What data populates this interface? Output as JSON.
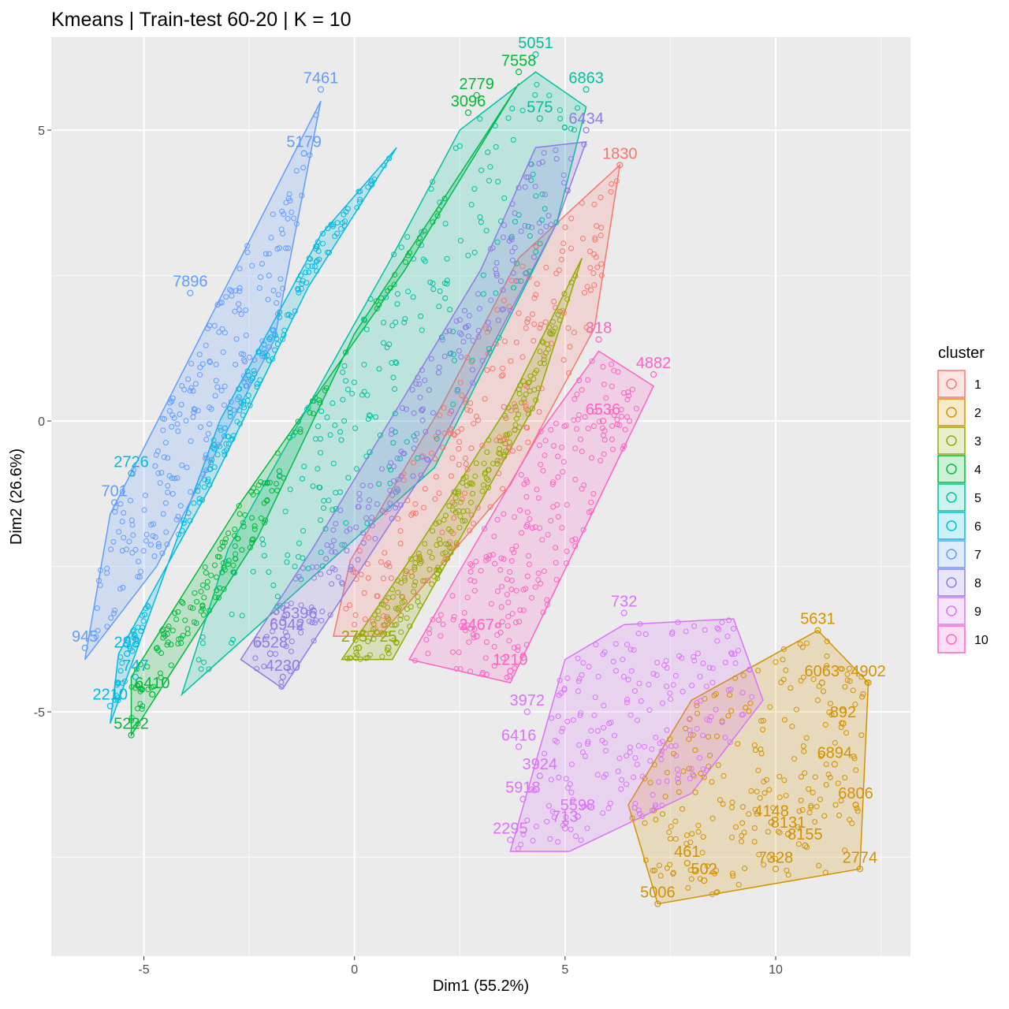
{
  "chart_data": {
    "type": "scatter",
    "title": "Kmeans | Train-test 60-20 | K = 10",
    "xlabel": "Dim1 (55.2%)",
    "ylabel": "Dim2 (26.6%)",
    "xlim": [
      -7.2,
      13.2
    ],
    "ylim": [
      -9.2,
      6.6
    ],
    "x_ticks": [
      -5,
      0,
      5,
      10
    ],
    "x_tick_labels": [
      "-5",
      "0",
      "5",
      "10"
    ],
    "y_ticks": [
      -5,
      0,
      5
    ],
    "y_tick_labels": [
      "-5",
      "0",
      "5"
    ],
    "grid": true,
    "legend": {
      "title": "cluster",
      "position": "right"
    },
    "series": [
      {
        "name": "1",
        "color": "#F8766D",
        "hull": [
          [
            6.3,
            4.4
          ],
          [
            5.7,
            1.6
          ],
          [
            3.7,
            -1.1
          ],
          [
            0.6,
            -3.7
          ],
          [
            -0.5,
            -3.7
          ],
          [
            -0.1,
            -2.4
          ],
          [
            2.1,
            0.3
          ],
          [
            3.9,
            2.8
          ]
        ],
        "labels": [
          {
            "text": "1830",
            "x": 6.3,
            "y": 4.4
          }
        ]
      },
      {
        "name": "2",
        "color": "#D39200",
        "hull": [
          [
            11.0,
            -3.6
          ],
          [
            12.2,
            -4.5
          ],
          [
            12.0,
            -7.7
          ],
          [
            7.2,
            -8.3
          ],
          [
            6.5,
            -6.6
          ],
          [
            8.0,
            -4.8
          ]
        ],
        "labels": [
          {
            "text": "5631",
            "x": 11.0,
            "y": -3.6
          },
          {
            "text": "4902",
            "x": 12.2,
            "y": -4.5
          },
          {
            "text": "6063",
            "x": 11.1,
            "y": -4.5
          },
          {
            "text": "892",
            "x": 11.6,
            "y": -5.2
          },
          {
            "text": "6894",
            "x": 11.4,
            "y": -5.9
          },
          {
            "text": "6806",
            "x": 11.9,
            "y": -6.6
          },
          {
            "text": "2774",
            "x": 12.0,
            "y": -7.7
          },
          {
            "text": "7328",
            "x": 10.0,
            "y": -7.7
          },
          {
            "text": "8155",
            "x": 10.7,
            "y": -7.3
          },
          {
            "text": "4148",
            "x": 9.9,
            "y": -6.9
          },
          {
            "text": "8131",
            "x": 10.3,
            "y": -7.1
          },
          {
            "text": "5006",
            "x": 7.2,
            "y": -8.3
          },
          {
            "text": "502",
            "x": 8.3,
            "y": -7.9
          },
          {
            "text": "461",
            "x": 7.9,
            "y": -7.6
          }
        ]
      },
      {
        "name": "3",
        "color": "#93AA00",
        "hull": [
          [
            5.4,
            2.8
          ],
          [
            4.3,
            0.3
          ],
          [
            0.9,
            -4.1
          ],
          [
            -0.3,
            -4.1
          ],
          [
            1.3,
            -2.4
          ],
          [
            3.6,
            0.2
          ]
        ],
        "labels": [
          {
            "text": "2757",
            "x": 0.1,
            "y": -3.9
          },
          {
            "text": "25",
            "x": 0.8,
            "y": -3.9
          }
        ]
      },
      {
        "name": "4",
        "color": "#00BA38",
        "hull": [
          [
            3.9,
            5.8
          ],
          [
            3.1,
            4.9
          ],
          [
            0.0,
            1.5
          ],
          [
            -2.3,
            -2.0
          ],
          [
            -5.3,
            -5.4
          ],
          [
            -5.3,
            -4.4
          ],
          [
            -2.7,
            -1.4
          ],
          [
            1.2,
            2.6
          ]
        ],
        "labels": [
          {
            "text": "7558",
            "x": 3.9,
            "y": 6.0
          },
          {
            "text": "2779",
            "x": 2.9,
            "y": 5.6
          },
          {
            "text": "3096",
            "x": 2.7,
            "y": 5.3
          },
          {
            "text": "6410",
            "x": -4.8,
            "y": -4.7
          },
          {
            "text": "5222",
            "x": -5.3,
            "y": -5.4
          }
        ]
      },
      {
        "name": "5",
        "color": "#00C19F",
        "hull": [
          [
            4.3,
            6.0
          ],
          [
            5.5,
            5.4
          ],
          [
            4.8,
            3.4
          ],
          [
            1.9,
            -0.8
          ],
          [
            -4.1,
            -4.7
          ],
          [
            -3.0,
            -2.2
          ],
          [
            0.8,
            2.7
          ],
          [
            2.5,
            5.0
          ]
        ],
        "labels": [
          {
            "text": "5051",
            "x": 4.3,
            "y": 6.3
          },
          {
            "text": "6863",
            "x": 5.5,
            "y": 5.7
          },
          {
            "text": "575",
            "x": 4.4,
            "y": 5.2
          }
        ]
      },
      {
        "name": "6",
        "color": "#00B9E3",
        "hull": [
          [
            1.0,
            4.7
          ],
          [
            -0.8,
            3.2
          ],
          [
            -3.2,
            0.0
          ],
          [
            -5.8,
            -5.2
          ],
          [
            -5.6,
            -4.0
          ],
          [
            -3.4,
            -1.1
          ],
          [
            -1.1,
            2.3
          ]
        ],
        "labels": [
          {
            "text": "2726",
            "x": -5.3,
            "y": -0.9
          },
          {
            "text": "2210",
            "x": -5.8,
            "y": -4.9
          },
          {
            "text": "298",
            "x": -5.4,
            "y": -4.0
          },
          {
            "text": "747",
            "x": -5.2,
            "y": -4.4
          }
        ]
      },
      {
        "name": "7",
        "color": "#619CFF",
        "hull": [
          [
            -0.8,
            5.5
          ],
          [
            -2.0,
            3.8
          ],
          [
            -5.8,
            -1.6
          ],
          [
            -6.4,
            -4.1
          ],
          [
            -4.7,
            -2.5
          ],
          [
            -1.9,
            1.4
          ]
        ],
        "labels": [
          {
            "text": "7461",
            "x": -0.8,
            "y": 5.7
          },
          {
            "text": "5179",
            "x": -1.2,
            "y": 4.6
          },
          {
            "text": "7896",
            "x": -3.9,
            "y": 2.2
          },
          {
            "text": "945",
            "x": -6.4,
            "y": -3.9
          },
          {
            "text": "701",
            "x": -5.7,
            "y": -1.4
          }
        ]
      },
      {
        "name": "8",
        "color": "#8F7BE7",
        "hull": [
          [
            5.5,
            4.8
          ],
          [
            4.8,
            3.4
          ],
          [
            1.9,
            -0.6
          ],
          [
            -1.7,
            -4.6
          ],
          [
            -2.7,
            -4.1
          ],
          [
            -1.0,
            -2.2
          ],
          [
            3.0,
            2.6
          ],
          [
            4.3,
            4.7
          ]
        ],
        "labels": [
          {
            "text": "6434",
            "x": 5.5,
            "y": 5.0
          },
          {
            "text": "6942",
            "x": -1.6,
            "y": -3.7
          },
          {
            "text": "6528",
            "x": -2.0,
            "y": -4.0
          },
          {
            "text": "4230",
            "x": -1.7,
            "y": -4.4
          },
          {
            "text": "5396",
            "x": -1.3,
            "y": -3.5
          }
        ]
      },
      {
        "name": "9",
        "color": "#DB72FB",
        "hull": [
          [
            6.4,
            -3.5
          ],
          [
            9.0,
            -3.4
          ],
          [
            9.7,
            -4.8
          ],
          [
            8.0,
            -6.4
          ],
          [
            5.1,
            -7.4
          ],
          [
            3.7,
            -7.4
          ],
          [
            5.0,
            -4.1
          ]
        ],
        "labels": [
          {
            "text": "732",
            "x": 6.4,
            "y": -3.3
          },
          {
            "text": "2295",
            "x": 3.7,
            "y": -7.2
          },
          {
            "text": "5918",
            "x": 4.0,
            "y": -6.5
          },
          {
            "text": "3924",
            "x": 4.4,
            "y": -6.1
          },
          {
            "text": "6416",
            "x": 3.9,
            "y": -5.6
          },
          {
            "text": "3972",
            "x": 4.1,
            "y": -5.0
          },
          {
            "text": "713",
            "x": 5.0,
            "y": -7.0
          },
          {
            "text": "5598",
            "x": 5.3,
            "y": -6.8
          }
        ]
      },
      {
        "name": "10",
        "color": "#FF61C3",
        "hull": [
          [
            5.8,
            1.2
          ],
          [
            7.1,
            0.6
          ],
          [
            3.7,
            -4.5
          ],
          [
            1.3,
            -4.1
          ],
          [
            2.4,
            -2.7
          ],
          [
            4.4,
            -0.2
          ]
        ],
        "labels": [
          {
            "text": "4882",
            "x": 7.1,
            "y": 0.8
          },
          {
            "text": "318",
            "x": 5.8,
            "y": 1.4
          },
          {
            "text": "1219",
            "x": 3.7,
            "y": -4.3
          },
          {
            "text": "2467",
            "x": 2.9,
            "y": -3.7
          },
          {
            "text": "6536",
            "x": 5.9,
            "y": 0.0
          }
        ]
      }
    ]
  }
}
